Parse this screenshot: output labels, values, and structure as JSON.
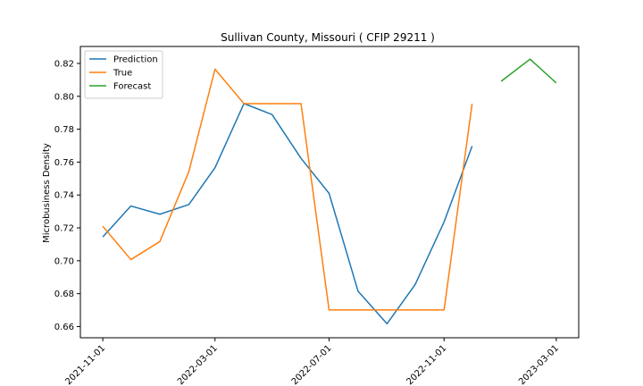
{
  "chart_data": {
    "type": "line",
    "title": "Sullivan County, Missouri ( CFIP 29211 )",
    "xlabel": "",
    "ylabel": "Microbusiness Density",
    "xlim": [
      "2021-10-08",
      "2023-03-25"
    ],
    "ylim": [
      0.6532,
      0.8303
    ],
    "x_ticks": [
      "2021-11-01",
      "2022-03-01",
      "2022-07-01",
      "2022-11-01",
      "2023-03-01"
    ],
    "y_ticks": [
      0.66,
      0.68,
      0.7,
      0.72,
      0.74,
      0.76,
      0.78,
      0.8,
      0.82
    ],
    "y_tick_labels": [
      "0.66",
      "0.68",
      "0.70",
      "0.72",
      "0.74",
      "0.76",
      "0.78",
      "0.80",
      "0.82"
    ],
    "grid": false,
    "legend_position": "upper-left",
    "series": [
      {
        "name": "Prediction",
        "color": "#1f77b4",
        "x": [
          "2021-11-01",
          "2021-12-01",
          "2022-01-01",
          "2022-02-01",
          "2022-03-01",
          "2022-04-01",
          "2022-05-01",
          "2022-06-01",
          "2022-07-01",
          "2022-08-01",
          "2022-09-01",
          "2022-10-01",
          "2022-11-01",
          "2022-12-01"
        ],
        "y": [
          0.7145,
          0.7333,
          0.7283,
          0.7342,
          0.7566,
          0.7956,
          0.7889,
          0.7623,
          0.741,
          0.6815,
          0.6617,
          0.6855,
          0.7236,
          0.7697
        ]
      },
      {
        "name": "True",
        "color": "#ff7f0e",
        "x": [
          "2021-11-01",
          "2021-12-01",
          "2022-01-01",
          "2022-02-01",
          "2022-03-01",
          "2022-04-01",
          "2022-05-01",
          "2022-06-01",
          "2022-07-01",
          "2022-08-01",
          "2022-09-01",
          "2022-10-01",
          "2022-11-01",
          "2022-12-01"
        ],
        "y": [
          0.721,
          0.7007,
          0.7117,
          0.7542,
          0.8165,
          0.7955,
          0.7955,
          0.7955,
          0.6701,
          0.6701,
          0.6701,
          0.6701,
          0.6701,
          0.7955
        ]
      },
      {
        "name": "Forecast",
        "color": "#2ca02c",
        "x": [
          "2023-01-01",
          "2023-02-01",
          "2023-03-01"
        ],
        "y": [
          0.8091,
          0.8226,
          0.8081
        ]
      }
    ]
  }
}
